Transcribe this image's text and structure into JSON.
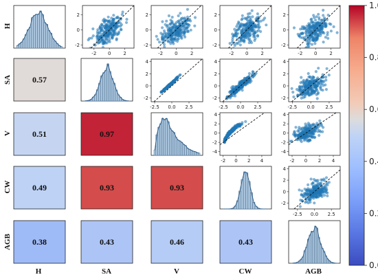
{
  "chart_data": {
    "type": "heatmap",
    "variables": [
      "H",
      "SA",
      "V",
      "CW",
      "AGB"
    ],
    "correlation": {
      "pairs": [
        {
          "row": "SA",
          "col": "H",
          "value": 0.57
        },
        {
          "row": "V",
          "col": "H",
          "value": 0.51
        },
        {
          "row": "V",
          "col": "SA",
          "value": 0.97
        },
        {
          "row": "CW",
          "col": "H",
          "value": 0.49
        },
        {
          "row": "CW",
          "col": "SA",
          "value": 0.93
        },
        {
          "row": "CW",
          "col": "V",
          "value": 0.93
        },
        {
          "row": "AGB",
          "col": "H",
          "value": 0.38
        },
        {
          "row": "AGB",
          "col": "SA",
          "value": 0.43
        },
        {
          "row": "AGB",
          "col": "V",
          "value": 0.46
        },
        {
          "row": "AGB",
          "col": "CW",
          "value": 0.43
        }
      ],
      "labels": {
        "SA_H": "0.57",
        "V_H": "0.51",
        "V_SA": "0.97",
        "CW_H": "0.49",
        "CW_SA": "0.93",
        "CW_V": "0.93",
        "AGB_H": "0.38",
        "AGB_SA": "0.43",
        "AGB_V": "0.46",
        "AGB_CW": "0.43"
      }
    },
    "upper_panels": "scatter plots of standardized values with dashed y = x reference line",
    "diagonal_panels": "histograms of each variable",
    "colorbar": {
      "colormap": "coolwarm",
      "range": [
        0.0,
        1.0
      ],
      "ticks": [
        "0.0",
        "0.2",
        "0.4",
        "0.6",
        "0.8",
        "1.0"
      ]
    },
    "axes": {
      "H_row": {
        "xlim": [
          -3.5,
          3.2
        ],
        "ylim": [
          -2.4,
          3.2
        ],
        "xticks": [
          "-2",
          "0",
          "2"
        ],
        "yticks": [
          "-2",
          "0",
          "2"
        ]
      },
      "SA_row": {
        "H_col_ylim": [
          -2.3,
          4.4
        ],
        "x_SA": {
          "xlim": [
            -2.8,
            4.2
          ],
          "ticks": [
            "-2.5",
            "0.0",
            "2.5"
          ]
        }
      },
      "tick_sets": {
        "n2_0_2": [
          "-2",
          "0",
          "2"
        ],
        "n2_0_2_4": [
          "-2",
          "0",
          "2",
          "4"
        ],
        "n25_0_25": [
          "-2.5",
          "0.0",
          "2.5"
        ],
        "n4_n2_0_2_4": [
          "-4",
          "-2",
          "0",
          "2",
          "4"
        ]
      }
    }
  }
}
